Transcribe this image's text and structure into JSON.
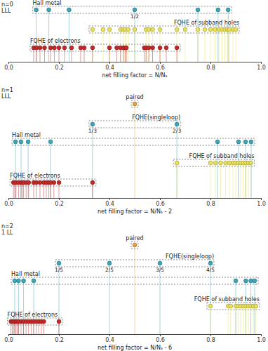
{
  "chart_data": [
    {
      "type": "scatter",
      "title": "n=0",
      "subtitle": "LLL",
      "xlabel": "net filling factor = N/Nₛ",
      "xlim": [
        0,
        1
      ],
      "xticks": [
        {
          "value": 0,
          "label": "0.0"
        },
        0.2,
        0.4,
        0.6,
        0.8,
        {
          "value": 1,
          "label": "1.0"
        }
      ],
      "tick_labels": "x",
      "series": [
        {
          "name": "Hall metal",
          "color": "#3aa6b8",
          "marker": "circle",
          "values": [
            0.11,
            0.16,
            0.24,
            0.5,
            0.75,
            0.83,
            0.87
          ],
          "value_labels": [
            null,
            null,
            null,
            "1/2",
            null,
            null,
            null
          ]
        },
        {
          "name": "FQHE of subband holes",
          "color": "#e8df5a",
          "marker": "circle",
          "values": [
            0.333,
            0.375,
            0.4,
            0.444,
            0.455,
            0.462,
            0.474,
            0.5,
            0.545,
            0.556,
            0.571,
            0.6,
            0.667,
            0.7,
            0.75,
            0.778,
            0.8,
            0.818,
            0.833,
            0.846,
            0.857,
            0.867,
            0.875,
            0.889,
            0.9
          ]
        },
        {
          "name": "FQHE of electrons",
          "color": "#c62828",
          "marker": "circle",
          "values": [
            0.1,
            0.111,
            0.125,
            0.143,
            0.167,
            0.182,
            0.2,
            0.222,
            0.25,
            0.286,
            0.3,
            0.333,
            0.4,
            0.429,
            0.444,
            0.455,
            0.462,
            0.467,
            0.538,
            0.545,
            0.556,
            0.571,
            0.6,
            0.625,
            0.667
          ]
        }
      ]
    },
    {
      "type": "scatter",
      "title": "n=1",
      "subtitle": "LLL",
      "xlabel": "net filling factor = N/Nₛ - 2",
      "xlim": [
        0,
        1
      ],
      "xticks": [
        {
          "value": 0,
          "label": "0.0"
        },
        0.2,
        0.4,
        0.6,
        0.8,
        {
          "value": 1,
          "label": "1.0"
        }
      ],
      "tick_labels": "x",
      "series": [
        {
          "name": "paired",
          "color": "#e8a040",
          "marker": "circle",
          "values": [
            0.5
          ]
        },
        {
          "name": "FQHE(singleloop)",
          "color": "#3aa6b8",
          "marker": "circle",
          "values": [
            0.333,
            0.667
          ],
          "value_labels": [
            "1/3",
            "2/3"
          ]
        },
        {
          "name": "Hall metal",
          "color": "#3aa6b8",
          "marker": "circle",
          "values": [
            0.028,
            0.05,
            0.078,
            0.167,
            0.828,
            0.911,
            0.939,
            0.961
          ]
        },
        {
          "name": "FQHE of subband holes",
          "color": "#e8df5a",
          "marker": "circle",
          "values": [
            0.667,
            0.8,
            0.82,
            0.84,
            0.86,
            0.875,
            0.889,
            0.9,
            0.91,
            0.92,
            0.93,
            0.94,
            0.95,
            0.96
          ]
        },
        {
          "name": "FQHE of electrons",
          "color": "#c62828",
          "marker": "circle",
          "values": [
            0.02,
            0.025,
            0.03,
            0.04,
            0.05,
            0.055,
            0.06,
            0.07,
            0.08,
            0.1,
            0.11,
            0.125,
            0.14,
            0.15,
            0.16,
            0.167,
            0.18,
            0.2,
            0.333
          ]
        }
      ]
    },
    {
      "type": "scatter",
      "title": "n=2",
      "subtitle": "1 LL",
      "xlabel": "net filling factor = N/Nₛ - 6",
      "xlim": [
        0,
        1
      ],
      "xticks": [
        {
          "value": 0,
          "label": "0.0"
        },
        0.2,
        0.4,
        0.6,
        0.8,
        {
          "value": 1,
          "label": "1.0"
        }
      ],
      "tick_labels": "x",
      "series": [
        {
          "name": "paired",
          "color": "#e8a040",
          "marker": "circle",
          "values": [
            0.5
          ]
        },
        {
          "name": "FQHE(singleloop)",
          "color": "#3aa6b8",
          "marker": "circle",
          "values": [
            0.2,
            0.4,
            0.6,
            0.8
          ],
          "value_labels": [
            "1/5",
            "2/5",
            "3/5",
            "4/5"
          ]
        },
        {
          "name": "Hall metal",
          "color": "#3aa6b8",
          "marker": "circle",
          "values": [
            0.025,
            0.04,
            0.06,
            0.1,
            0.9,
            0.94,
            0.96,
            0.975
          ]
        },
        {
          "name": "FQHE of subband holes",
          "color": "#e8df5a",
          "marker": "circle",
          "values": [
            0.8,
            0.87,
            0.88,
            0.9,
            0.91,
            0.92,
            0.93,
            0.94,
            0.95,
            0.96,
            0.97,
            0.98
          ]
        },
        {
          "name": "FQHE of electrons",
          "color": "#c62828",
          "marker": "circle",
          "values": [
            0.01,
            0.015,
            0.02,
            0.025,
            0.03,
            0.035,
            0.04,
            0.05,
            0.06,
            0.07,
            0.08,
            0.09,
            0.1,
            0.11,
            0.12,
            0.13,
            0.14,
            0.2
          ]
        }
      ]
    }
  ]
}
